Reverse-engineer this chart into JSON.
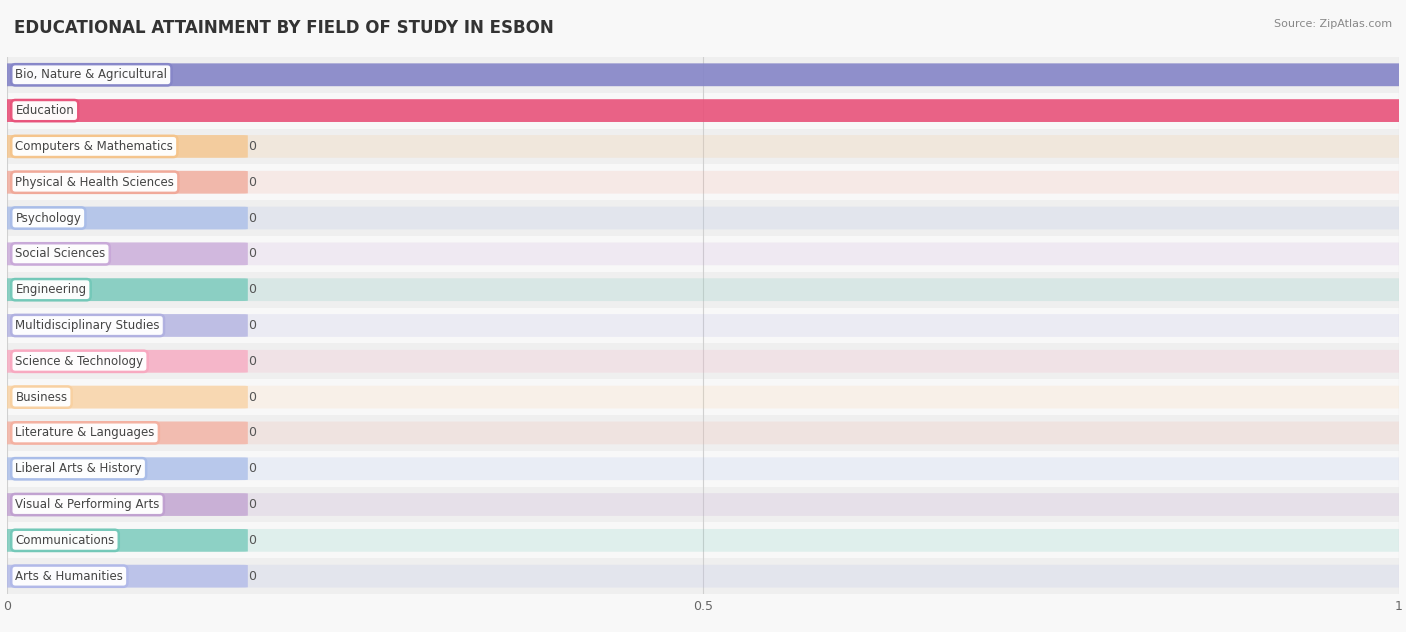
{
  "title": "EDUCATIONAL ATTAINMENT BY FIELD OF STUDY IN ESBON",
  "source_text": "Source: ZipAtlas.com",
  "categories": [
    "Bio, Nature & Agricultural",
    "Education",
    "Computers & Mathematics",
    "Physical & Health Sciences",
    "Psychology",
    "Social Sciences",
    "Engineering",
    "Multidisciplinary Studies",
    "Science & Technology",
    "Business",
    "Literature & Languages",
    "Liberal Arts & History",
    "Visual & Performing Arts",
    "Communications",
    "Arts & Humanities"
  ],
  "values": [
    1,
    1,
    0,
    0,
    0,
    0,
    0,
    0,
    0,
    0,
    0,
    0,
    0,
    0,
    0
  ],
  "bar_colors": [
    "#8585c8",
    "#e8527a",
    "#f5c48a",
    "#f0a898",
    "#a8bce8",
    "#c8a8d8",
    "#72c8b8",
    "#b0b0e0",
    "#f8a8c0",
    "#f8d0a0",
    "#f4b0a0",
    "#a8bce8",
    "#c0a0d0",
    "#72c8b8",
    "#b0b8e8"
  ],
  "xlim": [
    0,
    1
  ],
  "xticks": [
    0,
    0.5,
    1
  ],
  "xtick_labels": [
    "0",
    "0.5",
    "1"
  ],
  "background_color": "#f8f8f8",
  "title_fontsize": 12,
  "label_fontsize": 8.5,
  "tick_fontsize": 9,
  "bar_height": 0.62,
  "zero_bar_width": 0.165
}
